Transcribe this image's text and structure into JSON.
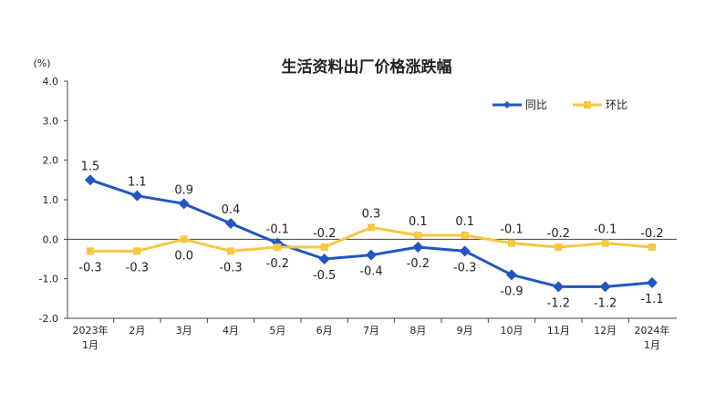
{
  "chart_data": {
    "type": "line",
    "title": "生活资料出厂价格涨跌幅",
    "unit_label": "(%)",
    "ylim": [
      -2.0,
      4.0
    ],
    "y_ticks": [
      "4.0",
      "3.0",
      "2.0",
      "1.0",
      "0.0",
      "-1.0",
      "-2.0"
    ],
    "y_tick_values": [
      4,
      3,
      2,
      1,
      0,
      -1,
      -2
    ],
    "categories": [
      [
        "2023年",
        "1月"
      ],
      [
        "2月"
      ],
      [
        "3月"
      ],
      [
        "4月"
      ],
      [
        "5月"
      ],
      [
        "6月"
      ],
      [
        "7月"
      ],
      [
        "8月"
      ],
      [
        "9月"
      ],
      [
        "10月"
      ],
      [
        "11月"
      ],
      [
        "12月"
      ],
      [
        "2024年",
        "1月"
      ]
    ],
    "grid": false,
    "legend_position": "top-right",
    "series": [
      {
        "name": "同比",
        "color": "#2255c4",
        "marker": "diamond",
        "values": [
          1.5,
          1.1,
          0.9,
          0.4,
          -0.1,
          -0.5,
          -0.4,
          -0.2,
          -0.3,
          -0.9,
          -1.2,
          -1.2,
          -1.1
        ],
        "labels": [
          "1.5",
          "1.1",
          "0.9",
          "0.4",
          "-0.1",
          "-0.5",
          "-0.4",
          "-0.2",
          "-0.3",
          "-0.9",
          "-1.2",
          "-1.2",
          "-1.1"
        ],
        "label_side": [
          "above",
          "above",
          "above",
          "above",
          "above",
          "below",
          "below",
          "below",
          "below",
          "below",
          "below",
          "below",
          "below"
        ]
      },
      {
        "name": "环比",
        "color": "#f5c842",
        "marker": "square",
        "values": [
          -0.3,
          -0.3,
          0.0,
          -0.3,
          -0.2,
          -0.2,
          0.3,
          0.1,
          0.1,
          -0.1,
          -0.2,
          -0.1,
          -0.2
        ],
        "labels": [
          "-0.3",
          "-0.3",
          "0.0",
          "-0.3",
          "-0.2",
          "-0.2",
          "0.3",
          "0.1",
          "0.1",
          "-0.1",
          "-0.2",
          "-0.1",
          "-0.2"
        ],
        "label_side": [
          "below",
          "below",
          "below",
          "below",
          "below",
          "above",
          "above",
          "above",
          "above",
          "above",
          "above",
          "above",
          "above"
        ]
      }
    ]
  }
}
